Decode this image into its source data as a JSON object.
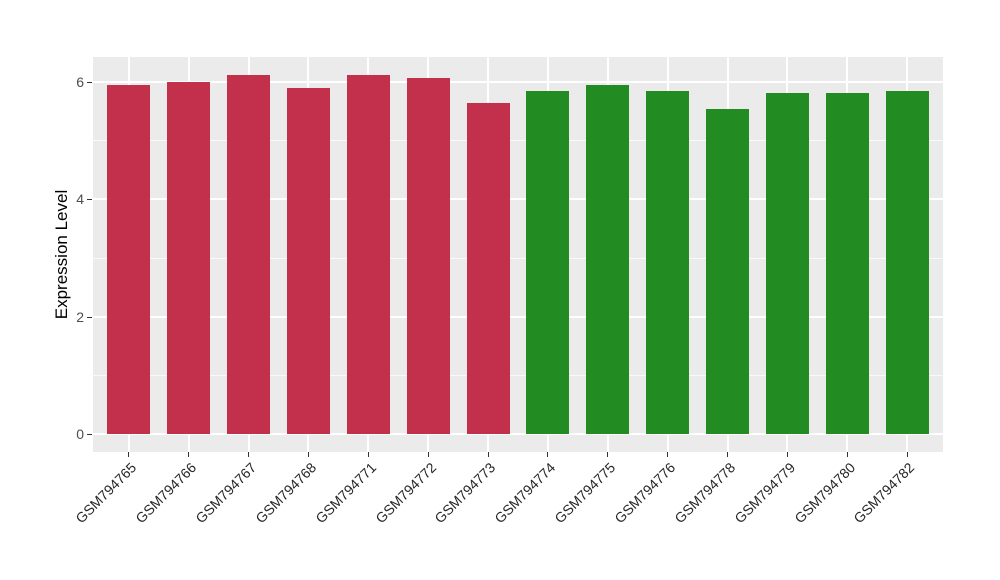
{
  "figure": {
    "background": "#FFFFFF"
  },
  "chart_data": {
    "type": "bar",
    "title": "",
    "xlabel": "",
    "ylabel": "Expression Level",
    "categories": [
      "GSM794765",
      "GSM794766",
      "GSM794767",
      "GSM794768",
      "GSM794771",
      "GSM794772",
      "GSM794773",
      "GSM794774",
      "GSM794775",
      "GSM794776",
      "GSM794778",
      "GSM794779",
      "GSM794780",
      "GSM794782"
    ],
    "values": [
      5.94,
      5.99,
      6.11,
      5.9,
      6.11,
      6.07,
      5.63,
      5.85,
      5.94,
      5.84,
      5.53,
      5.81,
      5.81,
      5.85
    ],
    "bar_groups": [
      "red",
      "red",
      "red",
      "red",
      "red",
      "red",
      "red",
      "green",
      "green",
      "green",
      "green",
      "green",
      "green",
      "green"
    ],
    "group_colors": {
      "red": "#C2304B",
      "green": "#228B22"
    },
    "yticks": [
      0,
      2,
      4,
      6
    ],
    "minor_yticks": [
      1,
      3,
      5
    ],
    "ylim": [
      -0.3,
      6.42
    ],
    "grid": true,
    "legend": "none",
    "panel_bg": "#EBEBEB",
    "grid_color": "#FFFFFF",
    "tick_color": "#333333",
    "tick_label_color": "#4D4D4D",
    "x_label_rotation_deg": 45,
    "bar_width_fraction": 0.72,
    "outer_pad_fraction": 0.6
  }
}
